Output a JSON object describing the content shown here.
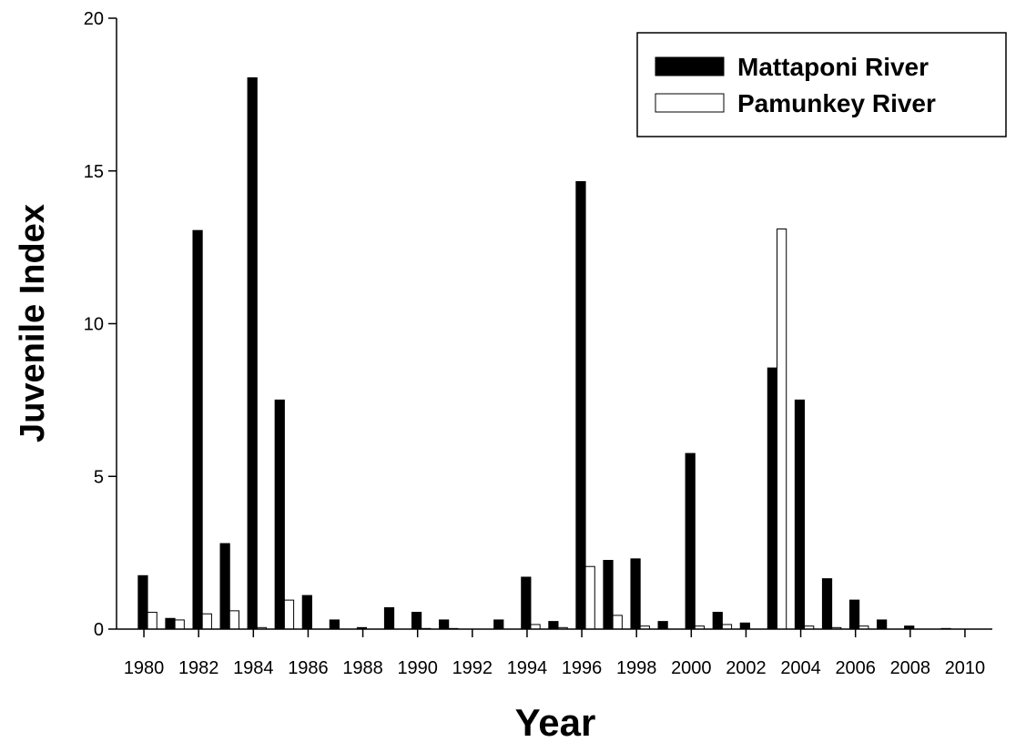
{
  "chart_data": {
    "type": "bar",
    "x_label": "Year",
    "y_label": "Juvenile Index",
    "x": [
      1980,
      1981,
      1982,
      1983,
      1984,
      1985,
      1986,
      1987,
      1988,
      1989,
      1990,
      1991,
      1992,
      1993,
      1994,
      1995,
      1996,
      1997,
      1998,
      1999,
      2000,
      2001,
      2002,
      2003,
      2004,
      2005,
      2006,
      2007,
      2008,
      2009
    ],
    "series": [
      {
        "name": "Mattaponi River",
        "color": "#000000",
        "values": [
          1.75,
          0.35,
          13.05,
          2.8,
          18.05,
          7.5,
          1.1,
          0.3,
          0.05,
          0.7,
          0.55,
          0.3,
          0,
          0.3,
          1.7,
          0.25,
          14.65,
          2.25,
          2.3,
          0.25,
          5.75,
          0.55,
          0.2,
          8.55,
          7.5,
          1.65,
          0.95,
          0.3,
          0.1,
          0
        ]
      },
      {
        "name": "Pamunkey River",
        "color": "#ffffff",
        "values": [
          0.55,
          0.3,
          0.5,
          0.6,
          0.05,
          0.95,
          0,
          0,
          0,
          0,
          0.02,
          0.02,
          0,
          0,
          0.15,
          0.05,
          2.05,
          0.45,
          0.1,
          0,
          0.1,
          0.15,
          0,
          13.1,
          0.1,
          0.05,
          0.1,
          0,
          0,
          0.02
        ]
      }
    ],
    "xlim": [
      1979,
      2011
    ],
    "xticks": [
      1980,
      1982,
      1984,
      1986,
      1988,
      1990,
      1992,
      1994,
      1996,
      1998,
      2000,
      2002,
      2004,
      2006,
      2008,
      2010
    ],
    "ylim": [
      0,
      20
    ],
    "yticks": [
      0,
      5,
      10,
      15,
      20
    ],
    "legend": "top-right"
  }
}
